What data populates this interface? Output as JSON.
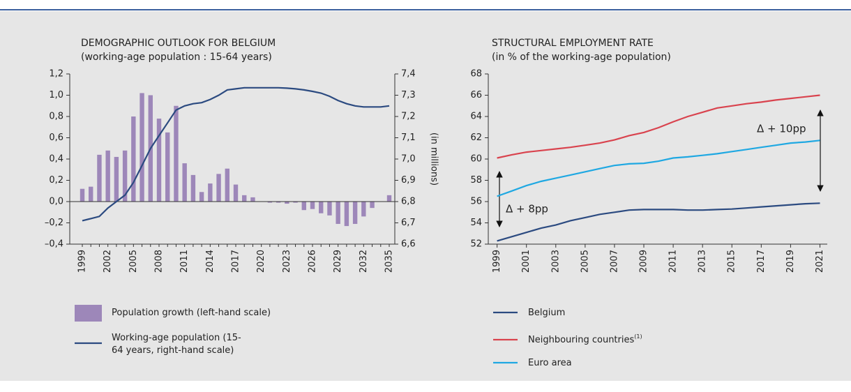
{
  "chart_data": [
    {
      "type": "combo",
      "title": "DEMOGRAPHIC OUTLOOK FOR BELGIUM",
      "subtitle": "(working-age population : 15-64 years)",
      "categories": [
        "1999",
        null,
        null,
        "2002",
        null,
        null,
        "2005",
        null,
        null,
        "2008",
        null,
        null,
        "2011",
        null,
        null,
        "2014",
        null,
        null,
        "2017",
        null,
        null,
        "2020",
        null,
        null,
        "2023",
        null,
        null,
        "2026",
        null,
        null,
        "2029",
        null,
        null,
        "2032",
        null,
        null,
        "2035"
      ],
      "series": [
        {
          "name": "Population growth (left-hand scale)",
          "type": "bar",
          "color": "#9d87b9",
          "values": [
            0.12,
            0.14,
            0.44,
            0.48,
            0.42,
            0.48,
            0.8,
            1.02,
            1.0,
            0.78,
            0.65,
            0.9,
            0.36,
            0.25,
            0.09,
            0.17,
            0.26,
            0.31,
            0.16,
            0.06,
            0.04,
            0.0,
            -0.01,
            -0.01,
            -0.02,
            -0.01,
            -0.08,
            -0.07,
            -0.11,
            -0.13,
            -0.21,
            -0.23,
            -0.21,
            -0.14,
            -0.06,
            0.0,
            0.06
          ]
        },
        {
          "name": "Working-age population (15-64 years, right-hand scale)",
          "type": "line",
          "axis": "y2",
          "color": "#2b4a80",
          "values": [
            6.71,
            6.72,
            6.73,
            6.77,
            6.8,
            6.83,
            6.89,
            6.97,
            7.05,
            7.11,
            7.17,
            7.23,
            7.25,
            7.26,
            7.265,
            7.28,
            7.3,
            7.325,
            7.33,
            7.335,
            7.335,
            7.335,
            7.335,
            7.335,
            7.333,
            7.33,
            7.325,
            7.318,
            7.31,
            7.295,
            7.275,
            7.26,
            7.25,
            7.245,
            7.245,
            7.245,
            7.25
          ]
        }
      ],
      "ylim": [
        -0.4,
        1.2
      ],
      "yticks": [
        {
          "value": -0.4,
          "label": "–0,4"
        },
        {
          "value": -0.2,
          "label": "–0,2"
        },
        {
          "value": 0,
          "label": "0,0"
        },
        {
          "value": 0.2,
          "label": "0,2"
        },
        {
          "value": 0.4,
          "label": "0,4"
        },
        {
          "value": 0.6,
          "label": "0,6"
        },
        {
          "value": 0.8,
          "label": "0,8"
        },
        {
          "value": 1.0,
          "label": "1,0"
        },
        {
          "value": 1.2,
          "label": "1,2"
        }
      ],
      "y2lim": [
        6.6,
        7.4
      ],
      "y2ticks": [
        {
          "value": 6.6,
          "label": "6,6"
        },
        {
          "value": 6.7,
          "label": "6,7"
        },
        {
          "value": 6.8,
          "label": "6,8"
        },
        {
          "value": 6.9,
          "label": "6,9"
        },
        {
          "value": 7.0,
          "label": "7,0"
        },
        {
          "value": 7.1,
          "label": "7,1"
        },
        {
          "value": 7.2,
          "label": "7,2"
        },
        {
          "value": 7.3,
          "label": "7,3"
        },
        {
          "value": 7.4,
          "label": "7,4"
        }
      ],
      "y2label": "(in millions)"
    },
    {
      "type": "line",
      "title": "STRUCTURAL EMPLOYMENT RATE",
      "subtitle": "(in % of the working-age population)",
      "x": [
        1999,
        2000,
        2001,
        2002,
        2003,
        2004,
        2005,
        2006,
        2007,
        2008,
        2009,
        2010,
        2011,
        2012,
        2013,
        2014,
        2015,
        2016,
        2017,
        2018,
        2019,
        2020,
        2021
      ],
      "xlim": [
        1998.4,
        2021.5
      ],
      "xticks": [
        1999,
        2001,
        2003,
        2005,
        2007,
        2009,
        2011,
        2013,
        2015,
        2017,
        2019,
        2021
      ],
      "ylim": [
        52,
        68
      ],
      "yticks": [
        52,
        54,
        56,
        58,
        60,
        62,
        64,
        66,
        68
      ],
      "series": [
        {
          "name": "Belgium",
          "color": "#2b4a80",
          "values": [
            52.3,
            52.7,
            53.1,
            53.5,
            53.8,
            54.2,
            54.5,
            54.8,
            55.0,
            55.2,
            55.25,
            55.25,
            55.25,
            55.2,
            55.2,
            55.25,
            55.3,
            55.4,
            55.5,
            55.6,
            55.7,
            55.8,
            55.85
          ]
        },
        {
          "name": "Neighbouring countries",
          "note": "(1)",
          "color": "#d9434e",
          "values": [
            60.1,
            60.4,
            60.65,
            60.8,
            60.95,
            61.1,
            61.3,
            61.5,
            61.8,
            62.2,
            62.5,
            62.95,
            63.5,
            64.0,
            64.4,
            64.8,
            65.0,
            65.2,
            65.35,
            65.55,
            65.7,
            65.85,
            66.0
          ]
        },
        {
          "name": "Euro area",
          "color": "#1fa8e2",
          "values": [
            56.5,
            57.0,
            57.5,
            57.9,
            58.2,
            58.5,
            58.8,
            59.1,
            59.4,
            59.55,
            59.6,
            59.8,
            60.1,
            60.2,
            60.35,
            60.5,
            60.7,
            60.9,
            61.1,
            61.3,
            61.5,
            61.6,
            61.75
          ]
        }
      ],
      "annotations": [
        "Δ + 8pp",
        "Δ + 10pp"
      ]
    }
  ]
}
